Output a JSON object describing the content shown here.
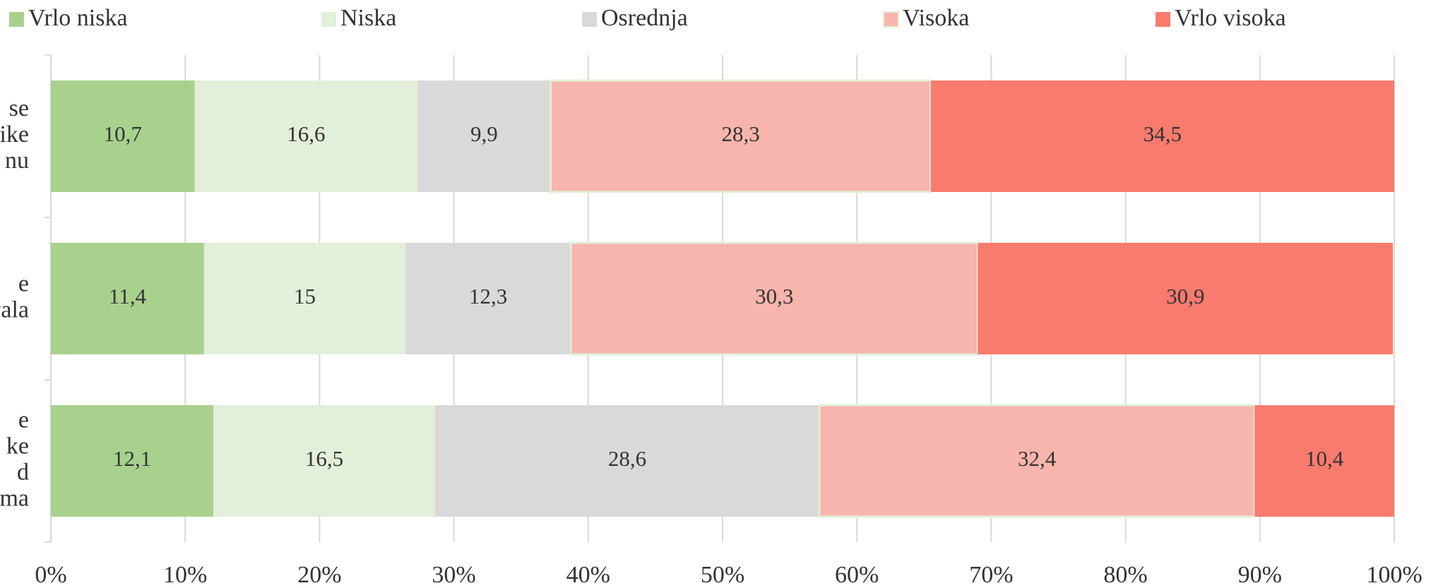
{
  "chart_data": {
    "type": "stacked-bar-horizontal",
    "categories": [
      [
        "se",
        "ike",
        "nu"
      ],
      [
        "e",
        "vala"
      ],
      [
        "e",
        "ke",
        "d",
        "ma"
      ]
    ],
    "series": [
      {
        "name": "Vrlo niska",
        "color": "#a9d18e",
        "values": [
          10.7,
          11.4,
          12.1
        ],
        "value_labels": [
          "10,7",
          "11,4",
          "12,1"
        ]
      },
      {
        "name": "Niska",
        "color": "#e2efd9",
        "values": [
          16.6,
          15,
          16.5
        ],
        "value_labels": [
          "16,6",
          "15",
          "16,5"
        ]
      },
      {
        "name": "Osrednja",
        "color": "#d9d9d9",
        "values": [
          9.9,
          12.3,
          28.6
        ],
        "value_labels": [
          "9,9",
          "12,3",
          "28,6"
        ]
      },
      {
        "name": "Visoka",
        "color": "#f8b5ad",
        "values": [
          28.3,
          30.3,
          32.4
        ],
        "value_labels": [
          "28,3",
          "30,3",
          "32,4"
        ]
      },
      {
        "name": "Vrlo visoka",
        "color": "#f97b6e",
        "values": [
          34.5,
          30.9,
          10.4
        ],
        "value_labels": [
          "34,5",
          "30,9",
          "10,4"
        ]
      }
    ],
    "xlim": [
      0,
      100
    ],
    "xticks": [
      {
        "value": 0,
        "label": "0%"
      },
      {
        "value": 10,
        "label": "10%"
      },
      {
        "value": 20,
        "label": "20%"
      },
      {
        "value": 30,
        "label": "30%"
      },
      {
        "value": 40,
        "label": "40%"
      },
      {
        "value": 50,
        "label": "50%"
      },
      {
        "value": 60,
        "label": "60%"
      },
      {
        "value": 70,
        "label": "70%"
      },
      {
        "value": 80,
        "label": "80%"
      },
      {
        "value": 90,
        "label": "90%"
      },
      {
        "value": 100,
        "label": "100%"
      }
    ],
    "grid": true,
    "legend": "top"
  }
}
